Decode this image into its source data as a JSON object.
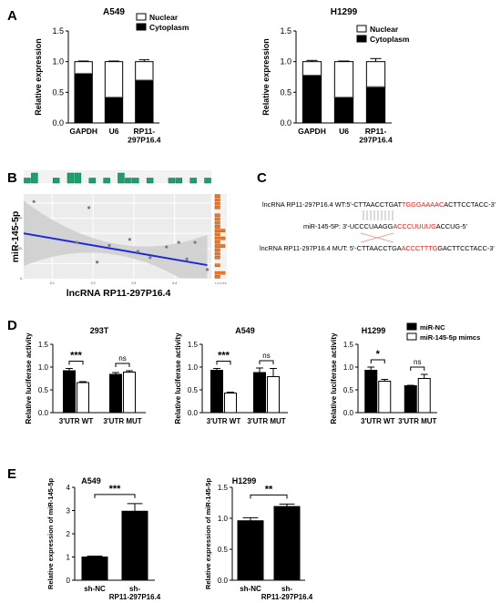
{
  "panels": {
    "a": "A",
    "b": "B",
    "c": "C",
    "d": "D",
    "e": "E"
  },
  "colors": {
    "black": "#000000",
    "green": "#1f9e6b",
    "orange": "#e8782a",
    "trend": "#1c28d8",
    "band": "#cfcfcf",
    "red": "#e0201b"
  },
  "chart_data": [
    {
      "id": "a1",
      "type": "bar",
      "stacked": true,
      "title": "A549",
      "categories": [
        "GAPDH",
        "U6",
        "RP11-297P16.4"
      ],
      "ylabel": "Relative expression",
      "ylim": [
        0,
        1.5
      ],
      "yticks": [
        0.0,
        0.5,
        1.0,
        1.5
      ],
      "legend": "top-right",
      "series": [
        {
          "name": "Cytoplasm",
          "values": [
            0.81,
            0.42,
            0.7
          ],
          "err": [
            0.02,
            0.02,
            0.03
          ]
        },
        {
          "name": "Nuclear",
          "values": [
            0.19,
            0.58,
            0.3
          ],
          "err": [
            0.01,
            0.01,
            0.03
          ]
        }
      ]
    },
    {
      "id": "a2",
      "type": "bar",
      "stacked": true,
      "title": "H1299",
      "categories": [
        "GAPDH",
        "U6",
        "RP11-297P16.4"
      ],
      "ylabel": "Relative expression",
      "ylim": [
        0,
        1.5
      ],
      "yticks": [
        0.0,
        0.5,
        1.0,
        1.5
      ],
      "legend": "top-right",
      "series": [
        {
          "name": "Cytoplasm",
          "values": [
            0.78,
            0.42,
            0.59
          ],
          "err": [
            0.02,
            0.01,
            0.05
          ]
        },
        {
          "name": "Nuclear",
          "values": [
            0.22,
            0.58,
            0.41
          ],
          "err": [
            0.02,
            0.01,
            0.05
          ]
        }
      ]
    },
    {
      "id": "b",
      "type": "scatter",
      "xlabel": "lncRNA RP11-297P16.4",
      "ylabel": "miR-145-5p",
      "yticks": [
        "2000-",
        "1000-",
        "0-"
      ],
      "xticks": [
        "0.1",
        "0.2",
        "0.3",
        "0.4"
      ],
      "x": [
        0.055,
        0.16,
        0.19,
        0.21,
        0.24,
        0.29,
        0.31,
        0.34,
        0.38,
        0.41,
        0.43,
        0.45,
        0.48
      ],
      "y": [
        2550,
        1200,
        2350,
        550,
        1100,
        1300,
        900,
        700,
        1050,
        1200,
        650,
        1200,
        300
      ],
      "trend": [
        [
          0.03,
          1500
        ],
        [
          0.48,
          450
        ]
      ],
      "top_hist": [
        1,
        2,
        0,
        0,
        1,
        0,
        2,
        2,
        0,
        1,
        0,
        1,
        0,
        2,
        1,
        1,
        0,
        1,
        0,
        0,
        1,
        1,
        0,
        1,
        0,
        1
      ],
      "right_hist": [
        1,
        1,
        1,
        1,
        0,
        1,
        1,
        1,
        1,
        2,
        1,
        2,
        1,
        2,
        1,
        1,
        1,
        0,
        1,
        0,
        2,
        1
      ],
      "right_ticks": [
        "1",
        "2",
        "3",
        "4",
        "5",
        "6"
      ]
    },
    {
      "id": "d1",
      "type": "bar",
      "title": "293T",
      "ylabel": "Relative luciferase activity",
      "categories": [
        "3'UTR WT",
        "3'UTR MUT"
      ],
      "ylim": [
        0,
        1.5
      ],
      "yticks": [
        0.0,
        0.5,
        1.0,
        1.5
      ],
      "series": [
        {
          "name": "miR-NC",
          "values": [
            0.92,
            0.84
          ],
          "err": [
            0.05,
            0.04
          ]
        },
        {
          "name": "miR-145-5p mimcs",
          "values": [
            0.66,
            0.89
          ],
          "err": [
            0.02,
            0.03
          ]
        }
      ],
      "significance": [
        "***",
        "ns"
      ]
    },
    {
      "id": "d2",
      "type": "bar",
      "title": "A549",
      "ylabel": "Relative luciferase activity",
      "categories": [
        "3'UTR WT",
        "3'UTR MUT"
      ],
      "ylim": [
        0,
        1.5
      ],
      "yticks": [
        0.0,
        0.5,
        1.0,
        1.5
      ],
      "series": [
        {
          "name": "miR-NC",
          "values": [
            0.93,
            0.88
          ],
          "err": [
            0.04,
            0.1
          ]
        },
        {
          "name": "miR-145-5p mimcs",
          "values": [
            0.43,
            0.79
          ],
          "err": [
            0.02,
            0.18
          ]
        }
      ],
      "significance": [
        "***",
        "ns"
      ]
    },
    {
      "id": "d3",
      "type": "bar",
      "title": "H1299",
      "ylabel": "Relative luciferase activity",
      "categories": [
        "3'UTR WT",
        "3'UTR MUT"
      ],
      "ylim": [
        0,
        1.5
      ],
      "yticks": [
        0.0,
        0.5,
        1.0,
        1.5
      ],
      "legend": "top-right",
      "series": [
        {
          "name": "miR-NC",
          "values": [
            0.93,
            0.59
          ],
          "err": [
            0.07,
            0.01
          ]
        },
        {
          "name": "miR-145-5p mimcs",
          "values": [
            0.69,
            0.75
          ],
          "err": [
            0.04,
            0.09
          ]
        }
      ],
      "significance": [
        "*",
        "ns"
      ]
    },
    {
      "id": "e1",
      "type": "bar",
      "title": "A549",
      "ylabel": "Relative expression of miR-145-5p",
      "categories": [
        "sh-NC",
        "sh-RP11-297P16.4"
      ],
      "ylim": [
        0,
        4
      ],
      "yticks": [
        0,
        1,
        2,
        3,
        4
      ],
      "series": [
        {
          "name": "",
          "values": [
            1.0,
            2.97
          ],
          "err": [
            0.04,
            0.33
          ]
        }
      ],
      "significance": [
        "***"
      ]
    },
    {
      "id": "e2",
      "type": "bar",
      "title": "H1299",
      "ylabel": "Relative expression of miR-145-5p",
      "categories": [
        "sh-NC",
        "sh-RP11-297P16.4"
      ],
      "ylim": [
        0,
        1.5
      ],
      "yticks": [
        0.0,
        0.5,
        1.0,
        1.5
      ],
      "series": [
        {
          "name": "",
          "values": [
            0.96,
            1.19
          ],
          "err": [
            0.05,
            0.04
          ]
        }
      ],
      "significance": [
        "**"
      ]
    }
  ],
  "seq": {
    "wt": [
      "lncRNA RP11-297P16.4 WT:5'-CTTAACCTGAT",
      "TGGGAAAAC",
      "ACTTCCTACC-3'"
    ],
    "mir": [
      "miR-145-5P: 3'-UCCCUAAGG",
      "ACCCUUUUG",
      "ACCUG-5'"
    ],
    "mut": [
      "lncRNA RP11-297P16.4 MUT: 5'-CTTAACCTGA",
      "ACCCTTTG",
      "GACTTCCTACC-3'"
    ]
  }
}
